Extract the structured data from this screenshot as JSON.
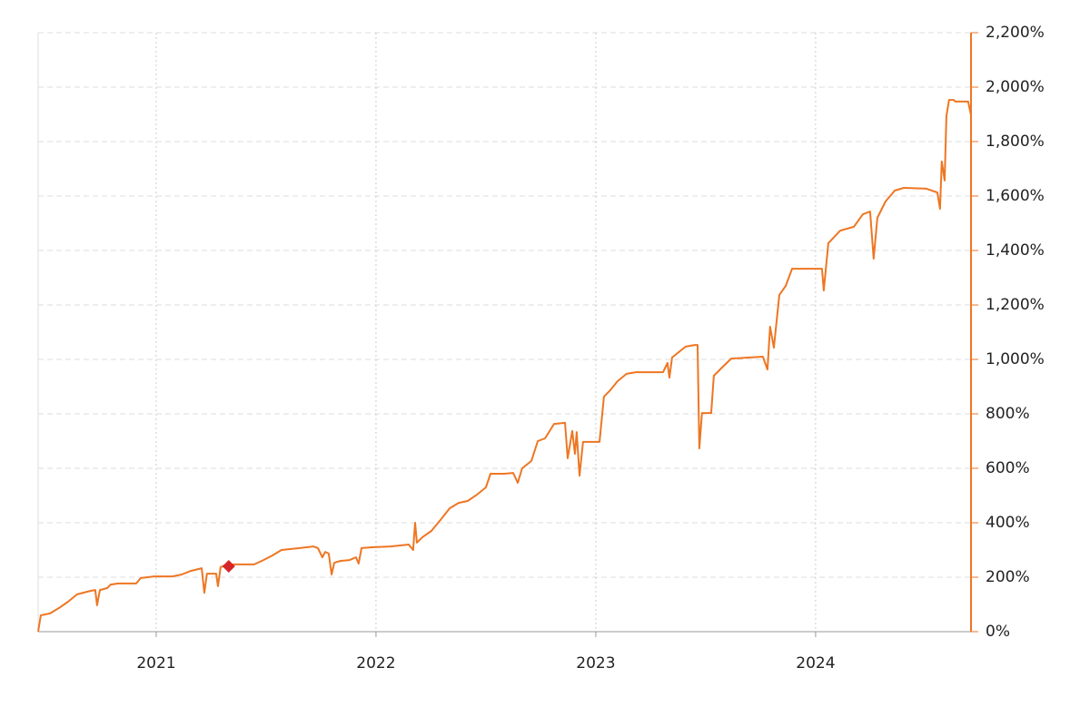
{
  "chart_data": {
    "type": "line",
    "x": [
      2020.463,
      2020.475,
      2020.517,
      2020.558,
      2020.599,
      2020.64,
      2020.702,
      2020.723,
      2020.731,
      2020.744,
      2020.777,
      2020.793,
      2020.826,
      2020.909,
      2020.93,
      2020.992,
      2021.074,
      2021.116,
      2021.157,
      2021.207,
      2021.219,
      2021.231,
      2021.273,
      2021.281,
      2021.293,
      2021.322,
      2021.384,
      2021.446,
      2021.488,
      2021.529,
      2021.57,
      2021.653,
      2021.715,
      2021.736,
      2021.756,
      2021.769,
      2021.785,
      2021.798,
      2021.81,
      2021.839,
      2021.88,
      2021.909,
      2021.921,
      2021.934,
      2021.983,
      2022.066,
      2022.149,
      2022.169,
      2022.178,
      2022.186,
      2022.211,
      2022.252,
      2022.293,
      2022.335,
      2022.376,
      2022.417,
      2022.459,
      2022.5,
      2022.521,
      2022.583,
      2022.624,
      2022.645,
      2022.665,
      2022.707,
      2022.736,
      2022.769,
      2022.81,
      2022.86,
      2022.872,
      2022.893,
      2022.905,
      2022.913,
      2022.926,
      2022.942,
      2023.017,
      2023.037,
      2023.066,
      2023.099,
      2023.14,
      2023.182,
      2023.306,
      2023.326,
      2023.335,
      2023.347,
      2023.409,
      2023.45,
      2023.463,
      2023.471,
      2023.483,
      2023.525,
      2023.537,
      2023.574,
      2023.616,
      2023.76,
      2023.781,
      2023.793,
      2023.81,
      2023.835,
      2023.864,
      2023.893,
      2024.029,
      2024.037,
      2024.058,
      2024.112,
      2024.174,
      2024.215,
      2024.248,
      2024.264,
      2024.281,
      2024.318,
      2024.36,
      2024.401,
      2024.504,
      2024.554,
      2024.566,
      2024.574,
      2024.587,
      2024.595,
      2024.607,
      2024.628,
      2024.636,
      2024.694,
      2024.707
    ],
    "series": [
      {
        "color": "#ee7623",
        "values": [
          0,
          60,
          67,
          87,
          110,
          137,
          150,
          153,
          97,
          153,
          160,
          173,
          177,
          177,
          197,
          203,
          203,
          210,
          223,
          233,
          143,
          213,
          213,
          167,
          237,
          247,
          247,
          247,
          263,
          280,
          300,
          307,
          313,
          307,
          273,
          293,
          287,
          210,
          253,
          260,
          263,
          273,
          250,
          307,
          310,
          313,
          320,
          300,
          400,
          327,
          347,
          370,
          410,
          453,
          473,
          480,
          503,
          530,
          580,
          580,
          583,
          547,
          600,
          627,
          700,
          710,
          763,
          767,
          637,
          737,
          653,
          733,
          573,
          697,
          697,
          863,
          887,
          920,
          947,
          953,
          953,
          987,
          933,
          1007,
          1047,
          1053,
          1053,
          673,
          803,
          803,
          940,
          970,
          1003,
          1010,
          963,
          1120,
          1043,
          1237,
          1270,
          1333,
          1333,
          1253,
          1427,
          1473,
          1487,
          1533,
          1543,
          1370,
          1520,
          1580,
          1620,
          1630,
          1627,
          1613,
          1553,
          1727,
          1657,
          1893,
          1953,
          1953,
          1947,
          1947,
          1897
        ]
      }
    ],
    "marker": {
      "x": 2021.33,
      "y": 240,
      "color": "#d62728"
    },
    "xlim": [
      2020.463,
      2024.707
    ],
    "xticks": [
      2021,
      2022,
      2023,
      2024
    ],
    "ylim": [
      0,
      2200
    ],
    "yticks": [
      {
        "value": 0,
        "label": "0%"
      },
      {
        "value": 200,
        "label": "200%"
      },
      {
        "value": 400,
        "label": "400%"
      },
      {
        "value": 600,
        "label": "600%"
      },
      {
        "value": 800,
        "label": "800%"
      },
      {
        "value": 1000,
        "label": "1,000%"
      },
      {
        "value": 1200,
        "label": "1,200%"
      },
      {
        "value": 1400,
        "label": "1,400%"
      },
      {
        "value": 1600,
        "label": "1,600%"
      },
      {
        "value": 1800,
        "label": "1,800%"
      },
      {
        "value": 2000,
        "label": "2,000%"
      },
      {
        "value": 2200,
        "label": "2,200%"
      }
    ],
    "grid": true,
    "axis_color": "#ee7623"
  }
}
